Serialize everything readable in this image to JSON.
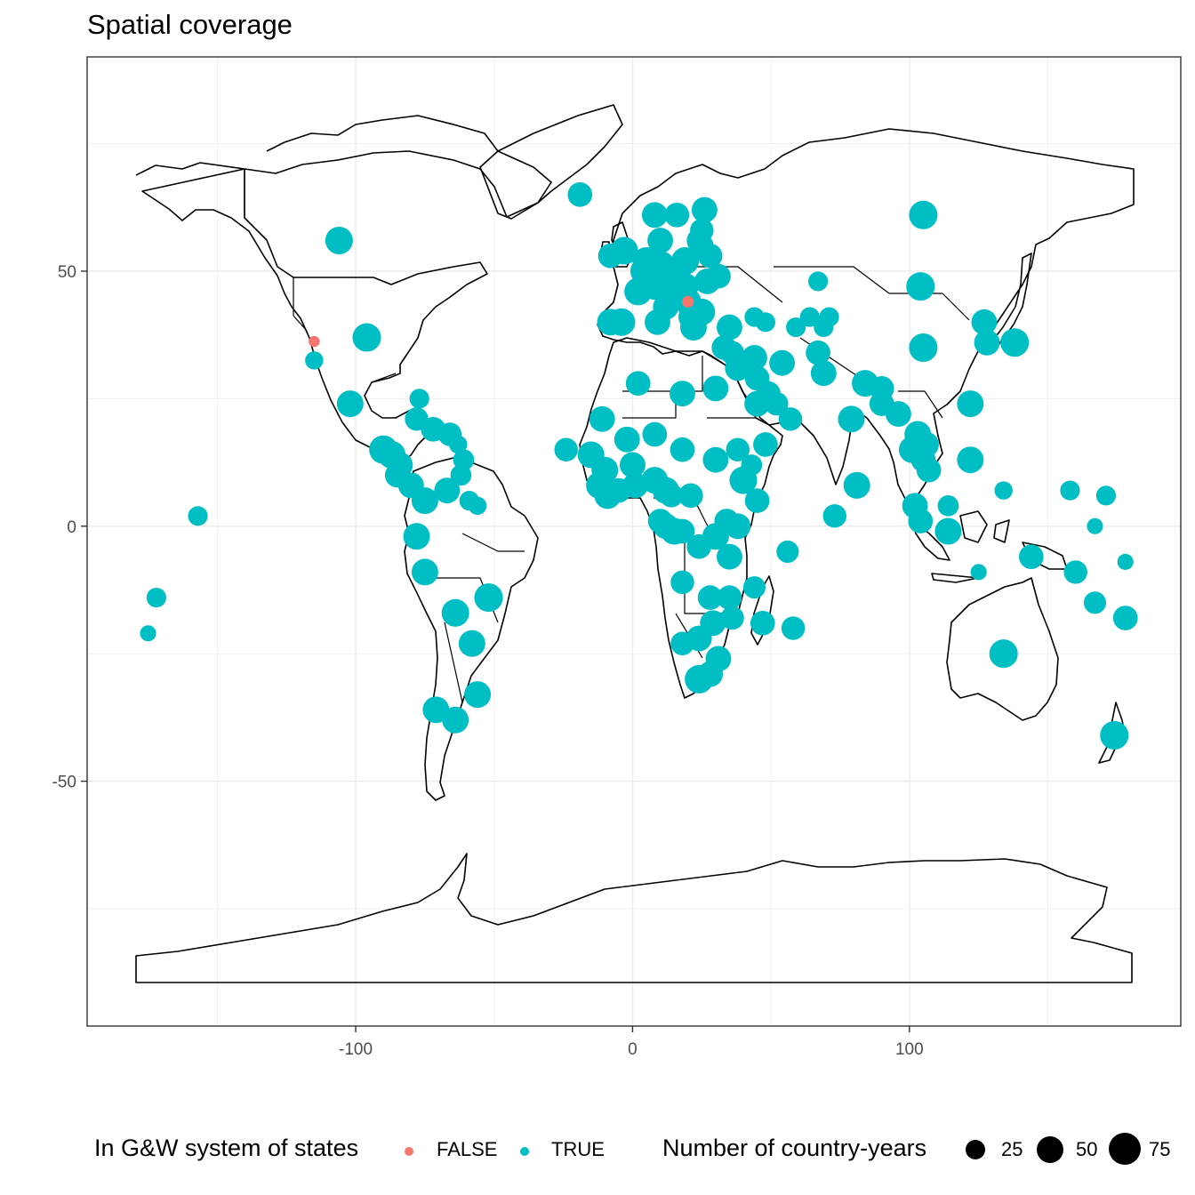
{
  "chart_data": {
    "type": "scatter",
    "title": "Spatial coverage",
    "xlabel": "",
    "ylabel": "",
    "xlim": [
      -197,
      198
    ],
    "ylim": [
      -98,
      92
    ],
    "x_ticks": [
      -100,
      0,
      100
    ],
    "x_tick_labels": [
      "-100",
      "0",
      "100"
    ],
    "y_ticks": [
      -50,
      0,
      50
    ],
    "y_tick_labels": [
      "-50",
      "0",
      "50"
    ],
    "grid": true,
    "basemap": "world country borders (outline)",
    "legend_position": "bottom",
    "legend": {
      "color_title": "In G&W system of states",
      "color_entries": [
        {
          "label": "FALSE",
          "color": "#F8766D"
        },
        {
          "label": "TRUE",
          "color": "#00BFC4"
        }
      ],
      "size_title": "Number of country-years",
      "size_entries": [
        {
          "label": "25",
          "value": 25
        },
        {
          "label": "50",
          "value": 50
        },
        {
          "label": "75",
          "value": 75
        }
      ]
    },
    "series": [
      {
        "name": "FALSE",
        "color": "#F8766D",
        "points": [
          {
            "x": -115,
            "y": 36.2,
            "n": 4
          },
          {
            "x": 20,
            "y": 44,
            "n": 5
          }
        ]
      },
      {
        "name": "TRUE",
        "color": "#00BFC4",
        "points": [
          {
            "x": -106,
            "y": 56,
            "n": 60
          },
          {
            "x": -96,
            "y": 37,
            "n": 65
          },
          {
            "x": -102,
            "y": 24,
            "n": 55
          },
          {
            "x": -115,
            "y": 32.5,
            "n": 20
          },
          {
            "x": -157,
            "y": 2,
            "n": 25
          },
          {
            "x": -172,
            "y": -14,
            "n": 25
          },
          {
            "x": -175,
            "y": -21,
            "n": 14
          },
          {
            "x": -77,
            "y": 25,
            "n": 25
          },
          {
            "x": -78,
            "y": 21,
            "n": 40
          },
          {
            "x": -72,
            "y": 19,
            "n": 45
          },
          {
            "x": -66,
            "y": 18,
            "n": 40
          },
          {
            "x": -90,
            "y": 15,
            "n": 65
          },
          {
            "x": -87,
            "y": 14,
            "n": 60
          },
          {
            "x": -84,
            "y": 12,
            "n": 50
          },
          {
            "x": -85,
            "y": 10,
            "n": 45
          },
          {
            "x": -80,
            "y": 8,
            "n": 50
          },
          {
            "x": -75,
            "y": 5,
            "n": 55
          },
          {
            "x": -67,
            "y": 7,
            "n": 50
          },
          {
            "x": -62,
            "y": 10,
            "n": 30
          },
          {
            "x": -61,
            "y": 13,
            "n": 30
          },
          {
            "x": -63,
            "y": 16,
            "n": 20
          },
          {
            "x": -59,
            "y": 5,
            "n": 25
          },
          {
            "x": -56,
            "y": 4,
            "n": 20
          },
          {
            "x": -78,
            "y": -2,
            "n": 55
          },
          {
            "x": -75,
            "y": -9,
            "n": 55
          },
          {
            "x": -64,
            "y": -17,
            "n": 60
          },
          {
            "x": -52,
            "y": -14,
            "n": 65
          },
          {
            "x": -58,
            "y": -23,
            "n": 55
          },
          {
            "x": -56,
            "y": -33,
            "n": 55
          },
          {
            "x": -71,
            "y": -36,
            "n": 55
          },
          {
            "x": -64,
            "y": -38,
            "n": 55
          },
          {
            "x": -19,
            "y": 65,
            "n": 45
          },
          {
            "x": 8,
            "y": 61,
            "n": 50
          },
          {
            "x": 16,
            "y": 61,
            "n": 45
          },
          {
            "x": 26,
            "y": 62,
            "n": 50
          },
          {
            "x": 25,
            "y": 58,
            "n": 40
          },
          {
            "x": 24,
            "y": 56,
            "n": 45
          },
          {
            "x": 25,
            "y": 55,
            "n": 40
          },
          {
            "x": 19,
            "y": 52,
            "n": 60
          },
          {
            "x": 10,
            "y": 56,
            "n": 50
          },
          {
            "x": 10,
            "y": 51,
            "n": 75
          },
          {
            "x": 5,
            "y": 52,
            "n": 60
          },
          {
            "x": 4,
            "y": 50,
            "n": 55
          },
          {
            "x": -8,
            "y": 53,
            "n": 45
          },
          {
            "x": -3,
            "y": 54,
            "n": 60
          },
          {
            "x": 2,
            "y": 46,
            "n": 60
          },
          {
            "x": 8,
            "y": 47,
            "n": 55
          },
          {
            "x": 14,
            "y": 47,
            "n": 60
          },
          {
            "x": 19,
            "y": 47,
            "n": 55
          },
          {
            "x": 15,
            "y": 50,
            "n": 50
          },
          {
            "x": 27,
            "y": 48,
            "n": 50
          },
          {
            "x": 31,
            "y": 49,
            "n": 45
          },
          {
            "x": 28,
            "y": 53,
            "n": 45
          },
          {
            "x": 25,
            "y": 42,
            "n": 55
          },
          {
            "x": 21,
            "y": 41,
            "n": 45
          },
          {
            "x": 20,
            "y": 44,
            "n": 55
          },
          {
            "x": 16,
            "y": 45,
            "n": 45
          },
          {
            "x": 12,
            "y": 43,
            "n": 50
          },
          {
            "x": 9,
            "y": 40,
            "n": 50
          },
          {
            "x": 22,
            "y": 39,
            "n": 55
          },
          {
            "x": -8,
            "y": 40,
            "n": 55
          },
          {
            "x": -4,
            "y": 40,
            "n": 60
          },
          {
            "x": 35,
            "y": 39,
            "n": 50
          },
          {
            "x": 33,
            "y": 35,
            "n": 45
          },
          {
            "x": 36,
            "y": 34,
            "n": 40
          },
          {
            "x": 38,
            "y": 31,
            "n": 50
          },
          {
            "x": 44,
            "y": 33,
            "n": 50
          },
          {
            "x": 45,
            "y": 29,
            "n": 45
          },
          {
            "x": 54,
            "y": 32,
            "n": 50
          },
          {
            "x": 49,
            "y": 26,
            "n": 45
          },
          {
            "x": 45,
            "y": 24,
            "n": 50
          },
          {
            "x": 48,
            "y": 16,
            "n": 45
          },
          {
            "x": 52,
            "y": 24,
            "n": 40
          },
          {
            "x": 57,
            "y": 21,
            "n": 40
          },
          {
            "x": 44,
            "y": 41,
            "n": 25
          },
          {
            "x": 48,
            "y": 40,
            "n": 25
          },
          {
            "x": 59,
            "y": 39,
            "n": 25
          },
          {
            "x": 64,
            "y": 41,
            "n": 25
          },
          {
            "x": 67,
            "y": 48,
            "n": 25
          },
          {
            "x": 71,
            "y": 41,
            "n": 25
          },
          {
            "x": 69,
            "y": 39,
            "n": 25
          },
          {
            "x": 67,
            "y": 34,
            "n": 45
          },
          {
            "x": 69,
            "y": 30,
            "n": 50
          },
          {
            "x": 84,
            "y": 28,
            "n": 55
          },
          {
            "x": 90,
            "y": 27,
            "n": 45
          },
          {
            "x": 90,
            "y": 24,
            "n": 45
          },
          {
            "x": 79,
            "y": 21,
            "n": 55
          },
          {
            "x": 81,
            "y": 8,
            "n": 55
          },
          {
            "x": 73,
            "y": 2,
            "n": 40
          },
          {
            "x": 96,
            "y": 22,
            "n": 50
          },
          {
            "x": 101,
            "y": 15,
            "n": 55
          },
          {
            "x": 103,
            "y": 18,
            "n": 55
          },
          {
            "x": 106,
            "y": 16,
            "n": 50
          },
          {
            "x": 105,
            "y": 13,
            "n": 45
          },
          {
            "x": 107,
            "y": 11,
            "n": 45
          },
          {
            "x": 102,
            "y": 4,
            "n": 50
          },
          {
            "x": 104,
            "y": 1,
            "n": 45
          },
          {
            "x": 114,
            "y": 4,
            "n": 30
          },
          {
            "x": 114,
            "y": -1,
            "n": 55
          },
          {
            "x": 122,
            "y": 13,
            "n": 55
          },
          {
            "x": 122,
            "y": 24,
            "n": 55
          },
          {
            "x": 105,
            "y": 35,
            "n": 65
          },
          {
            "x": 104,
            "y": 47,
            "n": 65
          },
          {
            "x": 105,
            "y": 61,
            "n": 65
          },
          {
            "x": 127,
            "y": 40,
            "n": 50
          },
          {
            "x": 128,
            "y": 36,
            "n": 50
          },
          {
            "x": 138,
            "y": 36,
            "n": 65
          },
          {
            "x": 134,
            "y": -25,
            "n": 65
          },
          {
            "x": 144,
            "y": -6,
            "n": 45
          },
          {
            "x": 160,
            "y": -9,
            "n": 40
          },
          {
            "x": 167,
            "y": -15,
            "n": 35
          },
          {
            "x": 178,
            "y": -18,
            "n": 45
          },
          {
            "x": 174,
            "y": -41,
            "n": 65
          },
          {
            "x": 134,
            "y": 7,
            "n": 20
          },
          {
            "x": 158,
            "y": 7,
            "n": 25
          },
          {
            "x": 171,
            "y": 6,
            "n": 25
          },
          {
            "x": 167,
            "y": 0,
            "n": 14
          },
          {
            "x": 178,
            "y": -7,
            "n": 14
          },
          {
            "x": 125,
            "y": -9,
            "n": 14
          },
          {
            "x": -24,
            "y": 15,
            "n": 40
          },
          {
            "x": -15,
            "y": 14,
            "n": 55
          },
          {
            "x": -11,
            "y": 21,
            "n": 50
          },
          {
            "x": -2,
            "y": 17,
            "n": 50
          },
          {
            "x": 8,
            "y": 18,
            "n": 45
          },
          {
            "x": 2,
            "y": 28,
            "n": 45
          },
          {
            "x": 18,
            "y": 26,
            "n": 50
          },
          {
            "x": 30,
            "y": 27,
            "n": 50
          },
          {
            "x": 30,
            "y": 13,
            "n": 50
          },
          {
            "x": 40,
            "y": 9,
            "n": 60
          },
          {
            "x": 45,
            "y": 5,
            "n": 45
          },
          {
            "x": 38,
            "y": 15,
            "n": 40
          },
          {
            "x": 43,
            "y": 12,
            "n": 30
          },
          {
            "x": 18,
            "y": 15,
            "n": 45
          },
          {
            "x": -10,
            "y": 11,
            "n": 55
          },
          {
            "x": -12,
            "y": 8,
            "n": 55
          },
          {
            "x": -9,
            "y": 6,
            "n": 55
          },
          {
            "x": -5,
            "y": 7,
            "n": 45
          },
          {
            "x": 0,
            "y": 12,
            "n": 50
          },
          {
            "x": 1,
            "y": 8,
            "n": 50
          },
          {
            "x": 8,
            "y": 9,
            "n": 55
          },
          {
            "x": 12,
            "y": 7,
            "n": 55
          },
          {
            "x": 14,
            "y": 6,
            "n": 40
          },
          {
            "x": 21,
            "y": 6,
            "n": 45
          },
          {
            "x": 10,
            "y": 1,
            "n": 45
          },
          {
            "x": 12,
            "y": 0,
            "n": 50
          },
          {
            "x": 15,
            "y": -1,
            "n": 55
          },
          {
            "x": 18,
            "y": -1,
            "n": 45
          },
          {
            "x": 24,
            "y": -4,
            "n": 45
          },
          {
            "x": 30,
            "y": -2,
            "n": 55
          },
          {
            "x": 34,
            "y": 1,
            "n": 45
          },
          {
            "x": 38,
            "y": 0,
            "n": 50
          },
          {
            "x": 35,
            "y": -6,
            "n": 50
          },
          {
            "x": 18,
            "y": -11,
            "n": 40
          },
          {
            "x": 28,
            "y": -14,
            "n": 45
          },
          {
            "x": 35,
            "y": -14,
            "n": 45
          },
          {
            "x": 44,
            "y": -12,
            "n": 35
          },
          {
            "x": 47,
            "y": -19,
            "n": 45
          },
          {
            "x": 56,
            "y": -5,
            "n": 35
          },
          {
            "x": 58,
            "y": -20,
            "n": 40
          },
          {
            "x": 18,
            "y": -23,
            "n": 40
          },
          {
            "x": 24,
            "y": -22,
            "n": 50
          },
          {
            "x": 29,
            "y": -19,
            "n": 50
          },
          {
            "x": 36,
            "y": -18,
            "n": 40
          },
          {
            "x": 31,
            "y": -26,
            "n": 50
          },
          {
            "x": 24,
            "y": -30,
            "n": 65
          },
          {
            "x": 28,
            "y": -29,
            "n": 50
          }
        ]
      }
    ]
  }
}
